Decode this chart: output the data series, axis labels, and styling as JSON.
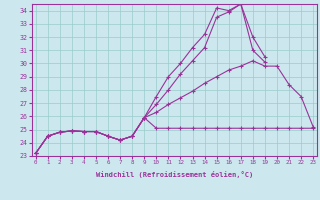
{
  "xlabel": "Windchill (Refroidissement éolien,°C)",
  "background_color": "#cce8ee",
  "grid_color": "#99cccc",
  "line_color": "#993399",
  "x_values": [
    0,
    1,
    2,
    3,
    4,
    5,
    6,
    7,
    8,
    9,
    10,
    11,
    12,
    13,
    14,
    15,
    16,
    17,
    18,
    19,
    20,
    21,
    22,
    23
  ],
  "line1": [
    23.2,
    24.5,
    24.8,
    24.9,
    24.85,
    24.85,
    24.5,
    24.2,
    24.5,
    25.9,
    25.1,
    25.1,
    25.1,
    25.1,
    25.1,
    25.1,
    25.1,
    25.1,
    25.1,
    25.1,
    25.1,
    25.1,
    25.1,
    25.1
  ],
  "line2": [
    23.2,
    24.5,
    24.8,
    24.9,
    24.85,
    24.85,
    24.5,
    24.2,
    24.5,
    25.9,
    26.3,
    26.9,
    27.4,
    27.9,
    28.5,
    29.0,
    29.5,
    29.8,
    30.2,
    29.8,
    29.8,
    28.4,
    27.5,
    25.2
  ],
  "line3": [
    23.2,
    24.5,
    24.8,
    24.9,
    24.85,
    24.85,
    24.5,
    24.2,
    24.5,
    25.9,
    26.9,
    28.0,
    29.2,
    30.2,
    31.2,
    33.5,
    33.9,
    34.5,
    31.0,
    30.1,
    null,
    null,
    null,
    null
  ],
  "line4": [
    23.2,
    24.5,
    24.8,
    24.9,
    24.85,
    24.85,
    24.5,
    24.2,
    24.5,
    25.9,
    27.5,
    29.0,
    30.0,
    31.2,
    32.2,
    34.2,
    34.0,
    34.5,
    32.0,
    30.5,
    null,
    null,
    null,
    null
  ],
  "ylim": [
    23,
    34.5
  ],
  "xlim": [
    -0.3,
    23.3
  ],
  "yticks": [
    23,
    24,
    25,
    26,
    27,
    28,
    29,
    30,
    31,
    32,
    33,
    34
  ],
  "xticks": [
    0,
    1,
    2,
    3,
    4,
    5,
    6,
    7,
    8,
    9,
    10,
    11,
    12,
    13,
    14,
    15,
    16,
    17,
    18,
    19,
    20,
    21,
    22,
    23
  ]
}
